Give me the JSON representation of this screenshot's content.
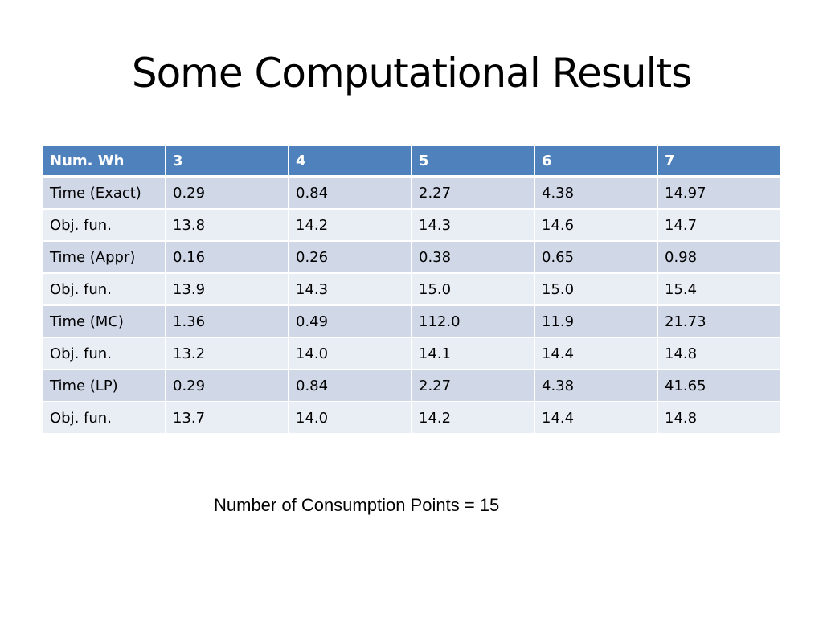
{
  "title": "Some Computational Results",
  "table": {
    "headers": [
      "Num. Wh",
      "3",
      "4",
      "5",
      "6",
      "7"
    ],
    "rows": [
      [
        "Time (Exact)",
        "0.29",
        "0.84",
        "2.27",
        "4.38",
        "14.97"
      ],
      [
        "Obj. fun.",
        "13.8",
        "14.2",
        "14.3",
        "14.6",
        "14.7"
      ],
      [
        "Time (Appr)",
        "0.16",
        "0.26",
        "0.38",
        "0.65",
        "0.98"
      ],
      [
        "Obj. fun.",
        "13.9",
        "14.3",
        "15.0",
        "15.0",
        "15.4"
      ],
      [
        "Time (MC)",
        "1.36",
        "0.49",
        "112.0",
        "11.9",
        "21.73"
      ],
      [
        "Obj. fun.",
        "13.2",
        "14.0",
        "14.1",
        "14.4",
        "14.8"
      ],
      [
        "Time (LP)",
        "0.29",
        "0.84",
        "2.27",
        "4.38",
        "41.65"
      ],
      [
        "Obj. fun.",
        "13.7",
        "14.0",
        "14.2",
        "14.4",
        "14.8"
      ]
    ]
  },
  "note": "Number of Consumption Points = 15",
  "colors": {
    "header": "#4F81BD",
    "row_dark": "#D0D8E8",
    "row_light": "#E9EDF4"
  }
}
